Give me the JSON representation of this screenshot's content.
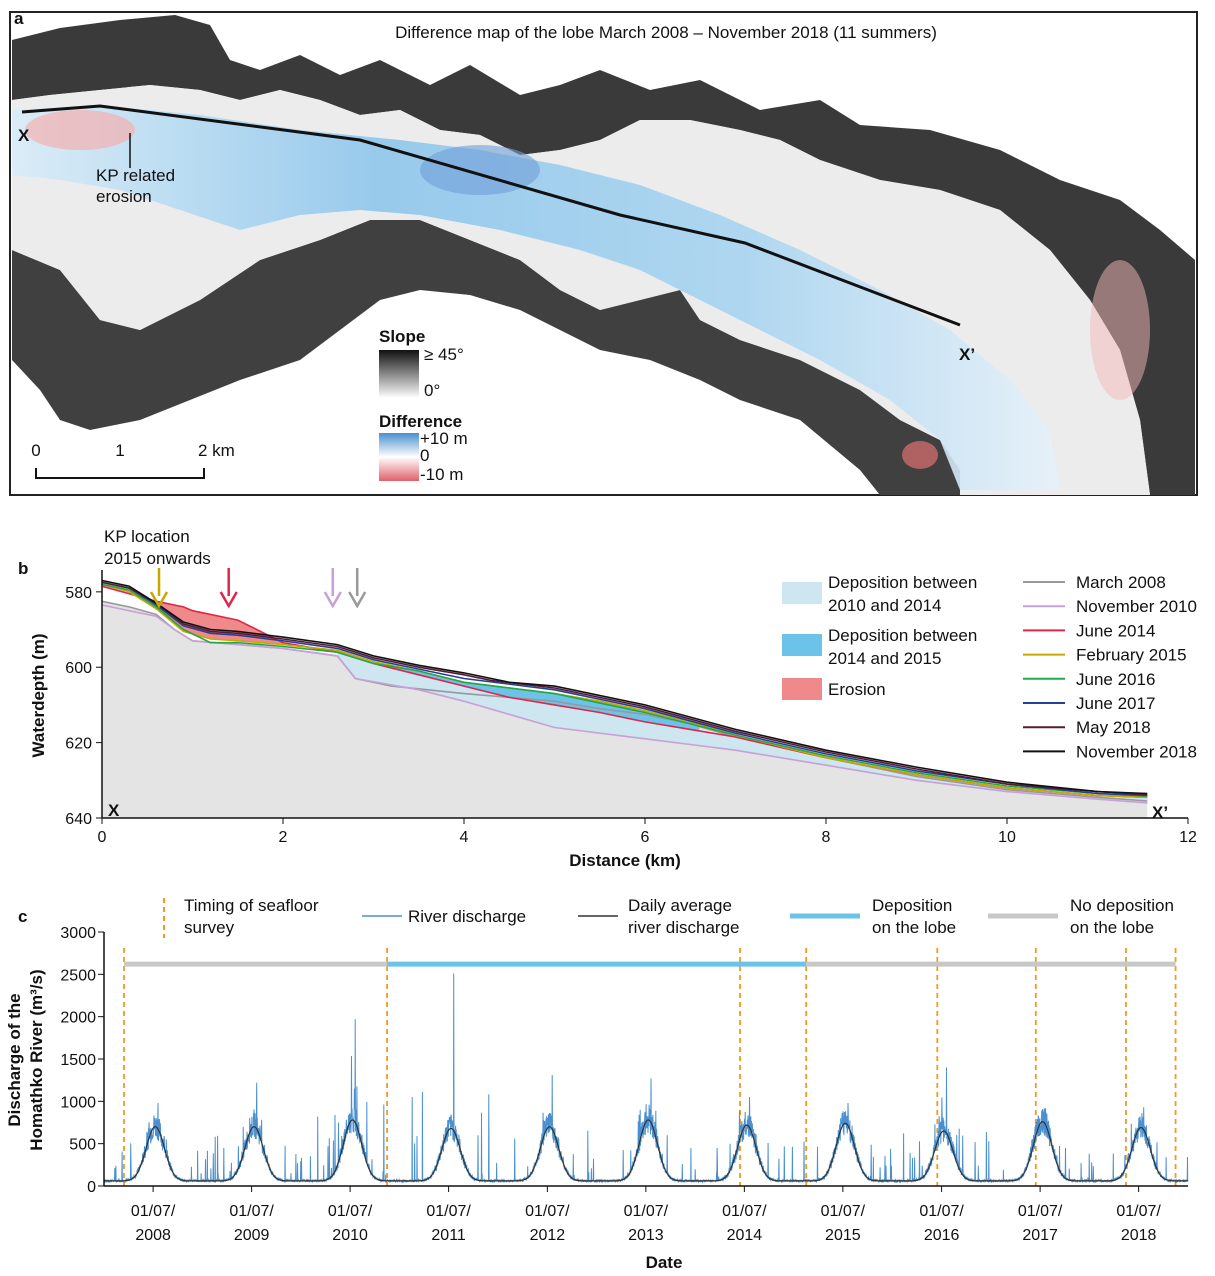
{
  "panel_a": {
    "letter": "a",
    "title": "Difference map of the lobe March 2008 – November 2018 (11 summers)",
    "profile_start": "X",
    "profile_end": "X’",
    "annotation": [
      "KP related",
      "erosion"
    ],
    "legend": {
      "slope_title": "Slope",
      "slope_max": "≥ 45°",
      "slope_min": "0°",
      "diff_title": "Difference",
      "diff_max": "+10 m",
      "diff_mid": "0",
      "diff_min": "-10 m"
    },
    "scale": {
      "ticks": [
        "0",
        "1",
        "2 km"
      ]
    },
    "colors": {
      "deposition": "#5aa9dd",
      "erosion": "#f0a0a0",
      "slope": "#222222"
    }
  },
  "panel_b": {
    "letter": "b",
    "kp_label": [
      "KP location",
      "2015 onwards"
    ],
    "start_label": "X",
    "end_label": "X’",
    "legend_fill": [
      {
        "label": [
          "Deposition between",
          "2010 and 2014"
        ],
        "color": "#cde6ef"
      },
      {
        "label": [
          "Deposition between",
          "2014 and 2015"
        ],
        "color": "#6cc3ea"
      },
      {
        "label": [
          "Erosion"
        ],
        "color": "#f08a8a"
      }
    ],
    "arrows": [
      {
        "x": 0.63,
        "color": "#c8a800"
      },
      {
        "x": 1.4,
        "color": "#e0264a"
      },
      {
        "x": 2.55,
        "color": "#c8a0d8"
      },
      {
        "x": 2.82,
        "color": "#999999"
      }
    ]
  },
  "panel_c": {
    "letter": "c",
    "legend": {
      "survey": [
        "Timing of seafloor",
        "survey"
      ],
      "river": [
        "River discharge"
      ],
      "daily": [
        "Daily average",
        "river discharge"
      ],
      "deposition": [
        "Deposition",
        "on the lobe"
      ],
      "nodeposition": [
        "No deposition",
        "on the lobe"
      ]
    },
    "colors": {
      "survey": "#f29a1f",
      "river": "#4a90d0",
      "daily": "#333333",
      "deposition": "#6cc3ea",
      "nodeposition": "#c8c8c8"
    }
  },
  "chart_data": [
    {
      "type": "line",
      "panel": "b",
      "xlabel": "Distance (km)",
      "ylabel": "Waterdepth (m)",
      "xlim": [
        0,
        12
      ],
      "ylim": [
        640,
        575
      ],
      "xticks": [
        0,
        2,
        4,
        6,
        8,
        10,
        12
      ],
      "yticks": [
        580,
        600,
        620,
        640
      ],
      "series": [
        {
          "name": "March 2008",
          "color": "#999999",
          "x": [
            0,
            0.3,
            0.6,
            0.8,
            1.0,
            1.5,
            2.0,
            2.6,
            2.8,
            3.2,
            3.6,
            4.0,
            5.0,
            5.5,
            6.0,
            6.5,
            7.0,
            8.0,
            9.0,
            10.0,
            11.0,
            11.55
          ],
          "y": [
            582.5,
            584,
            586,
            590,
            593,
            594,
            595,
            597,
            603,
            605,
            606,
            607,
            609,
            611,
            612.5,
            615,
            618.5,
            624,
            629,
            632.5,
            634.5,
            635.5
          ]
        },
        {
          "name": "November 2010",
          "color": "#c8a0d8",
          "x": [
            0,
            0.3,
            0.6,
            0.8,
            1.0,
            1.5,
            2.0,
            2.6,
            2.8,
            3.5,
            4.0,
            5.0,
            6.0,
            6.5,
            7.0,
            8.0,
            9.0,
            10.0,
            11.0,
            11.55
          ],
          "y": [
            583.5,
            585,
            586.5,
            590,
            593,
            594,
            595,
            597,
            603,
            606,
            609,
            616,
            619,
            620.5,
            622,
            626,
            630,
            633,
            635,
            636
          ]
        },
        {
          "name": "June 2014",
          "color": "#e0264a",
          "x": [
            0,
            0.3,
            0.6,
            0.9,
            1.0,
            1.5,
            2.0,
            2.6,
            3.0,
            3.5,
            4.0,
            4.5,
            5.0,
            5.5,
            6.0,
            6.5,
            7.0,
            8.0,
            9.0,
            10.0,
            11.0,
            11.55
          ],
          "y": [
            578.5,
            580.5,
            582.5,
            584,
            585,
            587.5,
            593.5,
            596,
            599,
            602,
            605,
            608,
            610,
            612,
            614.5,
            616.5,
            618.5,
            624,
            628.5,
            632,
            634,
            634.5
          ]
        },
        {
          "name": "February 2015",
          "color": "#c8a800",
          "x": [
            0,
            0.3,
            0.6,
            0.9,
            1.2,
            1.5,
            2.0,
            2.6,
            3.0,
            3.5,
            4.0,
            4.5,
            5.0,
            5.5,
            6.0,
            6.5,
            7.0,
            8.0,
            9.0,
            10.0,
            11.0,
            11.55
          ],
          "y": [
            578,
            580,
            584.5,
            590.5,
            592.5,
            593,
            594,
            595.5,
            598.5,
            601,
            604,
            605.5,
            607,
            609,
            611.5,
            614.5,
            618,
            624,
            628.5,
            632,
            634,
            634.5
          ]
        },
        {
          "name": "June 2016",
          "color": "#22a84a",
          "x": [
            0,
            0.3,
            0.6,
            0.9,
            1.2,
            1.5,
            2.0,
            2.6,
            3.0,
            3.5,
            4.0,
            5.0,
            6.0,
            7.0,
            8.0,
            9.0,
            10.0,
            11.0,
            11.55
          ],
          "y": [
            578,
            579.5,
            584,
            590,
            593.5,
            593.5,
            594.5,
            596,
            599,
            601,
            604,
            607,
            612,
            618,
            623.5,
            628,
            631.5,
            633.5,
            634.2
          ]
        },
        {
          "name": "June 2017",
          "color": "#233f96",
          "x": [
            0,
            0.3,
            0.6,
            0.9,
            1.2,
            1.5,
            2.0,
            2.6,
            3.0,
            3.5,
            4.0,
            5.0,
            6.0,
            7.0,
            8.0,
            9.0,
            10.0,
            11.0,
            11.55
          ],
          "y": [
            577.5,
            579,
            583.5,
            589,
            591,
            591.5,
            593,
            595,
            598,
            600.5,
            603,
            606,
            611,
            617.5,
            623,
            627.5,
            631,
            633.5,
            634
          ]
        },
        {
          "name": "May 2018",
          "color": "#5a1a35",
          "x": [
            0,
            0.3,
            0.6,
            0.9,
            1.2,
            1.5,
            2.0,
            2.6,
            3.0,
            3.5,
            4.0,
            4.3,
            5.0,
            6.0,
            7.0,
            8.0,
            9.0,
            10.0,
            11.0,
            11.55
          ],
          "y": [
            577.5,
            579,
            583,
            588.5,
            590.5,
            591,
            592.5,
            594.5,
            597.5,
            600,
            602,
            603.5,
            605.5,
            610.5,
            617,
            622.5,
            627,
            631,
            633,
            633.8
          ]
        },
        {
          "name": "November 2018",
          "color": "#111111",
          "x": [
            0,
            0.3,
            0.6,
            0.9,
            1.2,
            1.5,
            2.0,
            2.6,
            3.0,
            3.5,
            4.0,
            4.5,
            5.0,
            6.0,
            7.0,
            8.0,
            9.0,
            10.0,
            11.0,
            11.55
          ],
          "y": [
            577,
            578.5,
            583,
            588,
            590,
            590.5,
            592,
            594,
            597,
            599.5,
            601.5,
            604,
            605,
            610,
            616.5,
            622,
            626.5,
            630.5,
            633,
            633.5
          ]
        }
      ]
    },
    {
      "type": "line",
      "panel": "c",
      "xlabel": "Date",
      "ylabel": "Discharge of the Homathko River (m³/s)",
      "xlim": [
        "2008-01-01",
        "2018-12-31"
      ],
      "ylim": [
        0,
        3000
      ],
      "yticks": [
        0,
        500,
        1000,
        1500,
        2000,
        2500,
        3000
      ],
      "xtick_labels": [
        [
          "01/07/",
          "2008"
        ],
        [
          "01/07/",
          "2009"
        ],
        [
          "01/07/",
          "2010"
        ],
        [
          "01/07/",
          "2011"
        ],
        [
          "01/07/",
          "2012"
        ],
        [
          "01/07/",
          "2013"
        ],
        [
          "01/07/",
          "2014"
        ],
        [
          "01/07/",
          "2015"
        ],
        [
          "01/07/",
          "2016"
        ],
        [
          "01/07/",
          "2017"
        ],
        [
          "01/07/",
          "2018"
        ]
      ],
      "xtick_dates": [
        "2008-07-01",
        "2009-07-01",
        "2010-07-01",
        "2011-07-01",
        "2012-07-01",
        "2013-07-01",
        "2014-07-01",
        "2015-07-01",
        "2016-07-01",
        "2017-07-01",
        "2018-07-01"
      ],
      "survey_dates": [
        "2008-03-15",
        "2010-11-15",
        "2014-06-15",
        "2015-02-15",
        "2016-06-15",
        "2017-06-15",
        "2018-05-15",
        "2018-11-15"
      ],
      "deposition_period": [
        "2010-11-15",
        "2015-02-15"
      ],
      "nodeposition_periods": [
        [
          "2008-03-15",
          "2010-11-15"
        ],
        [
          "2015-02-15",
          "2018-11-15"
        ]
      ],
      "band_level": 2620,
      "annual_peaks": [
        {
          "year": 2008,
          "daily_peak": 700,
          "max_peak": 980
        },
        {
          "year": 2009,
          "daily_peak": 700,
          "max_peak": 1220
        },
        {
          "year": 2010,
          "daily_peak": 780,
          "max_peak": 1970
        },
        {
          "year": 2011,
          "daily_peak": 680,
          "max_peak": 2510
        },
        {
          "year": 2012,
          "daily_peak": 700,
          "max_peak": 1310
        },
        {
          "year": 2013,
          "daily_peak": 780,
          "max_peak": 1270
        },
        {
          "year": 2014,
          "daily_peak": 720,
          "max_peak": 1050
        },
        {
          "year": 2015,
          "daily_peak": 740,
          "max_peak": 980
        },
        {
          "year": 2016,
          "daily_peak": 650,
          "max_peak": 1400
        },
        {
          "year": 2017,
          "daily_peak": 760,
          "max_peak": 920
        },
        {
          "year": 2018,
          "daily_peak": 690,
          "max_peak": 930
        }
      ]
    }
  ]
}
